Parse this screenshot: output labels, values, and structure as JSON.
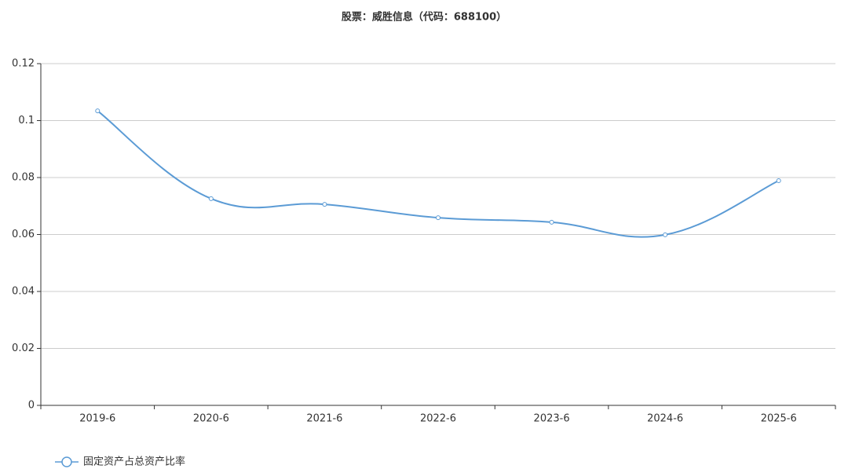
{
  "chart_data": {
    "type": "line",
    "title": "股票：威胜信息（代码：688100）",
    "categories": [
      "2019-6",
      "2020-6",
      "2021-6",
      "2022-6",
      "2023-6",
      "2024-6",
      "2025-6"
    ],
    "series": [
      {
        "name": "固定资产占总资产比率",
        "color": "#5b9bd5",
        "values": [
          0.1034,
          0.0726,
          0.0706,
          0.0659,
          0.0643,
          0.0599,
          0.0789
        ]
      }
    ],
    "ylim": [
      0,
      0.12
    ],
    "yticks": [
      0,
      0.02,
      0.04,
      0.06,
      0.08,
      0.1,
      0.12
    ],
    "grid": true,
    "smooth": true,
    "legend": "bottom-left"
  }
}
